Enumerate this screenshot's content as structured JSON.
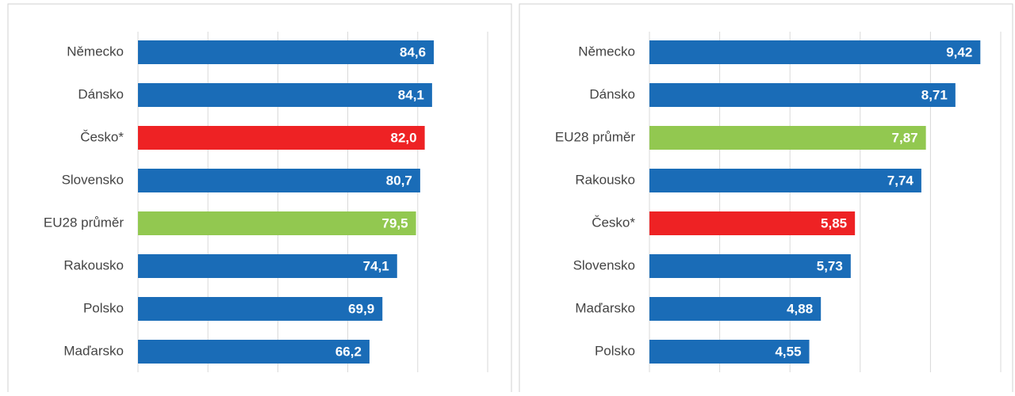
{
  "chart_data": [
    {
      "type": "barh",
      "categories": [
        "Německo",
        "Dánsko",
        "Česko*",
        "Slovensko",
        "EU28 průměr",
        "Rakousko",
        "Polsko",
        "Maďarsko"
      ],
      "values": [
        84.6,
        84.1,
        82.0,
        80.7,
        79.5,
        74.1,
        69.9,
        66.2
      ],
      "value_labels": [
        "84,6",
        "84,1",
        "82,0",
        "80,7",
        "79,5",
        "74,1",
        "69,9",
        "66,2"
      ],
      "colors": [
        "#1a6cb7",
        "#1a6cb7",
        "#ee2224",
        "#1a6cb7",
        "#92c850",
        "#1a6cb7",
        "#1a6cb7",
        "#1a6cb7"
      ],
      "xlim": [
        0,
        100
      ],
      "xticks": [
        0,
        20,
        40,
        60,
        80,
        100
      ],
      "grid": true
    },
    {
      "type": "barh",
      "categories": [
        "Německo",
        "Dánsko",
        "EU28 průměr",
        "Rakousko",
        "Česko*",
        "Slovensko",
        "Maďarsko",
        "Polsko"
      ],
      "values": [
        9.42,
        8.71,
        7.87,
        7.74,
        5.85,
        5.73,
        4.88,
        4.55
      ],
      "value_labels": [
        "9,42",
        "8,71",
        "7,87",
        "7,74",
        "5,85",
        "5,73",
        "4,88",
        "4,55"
      ],
      "colors": [
        "#1a6cb7",
        "#1a6cb7",
        "#92c850",
        "#1a6cb7",
        "#ee2224",
        "#1a6cb7",
        "#1a6cb7",
        "#1a6cb7"
      ],
      "xlim": [
        0,
        10
      ],
      "xticks": [
        0,
        2,
        4,
        6,
        8,
        10
      ],
      "grid": true
    }
  ]
}
